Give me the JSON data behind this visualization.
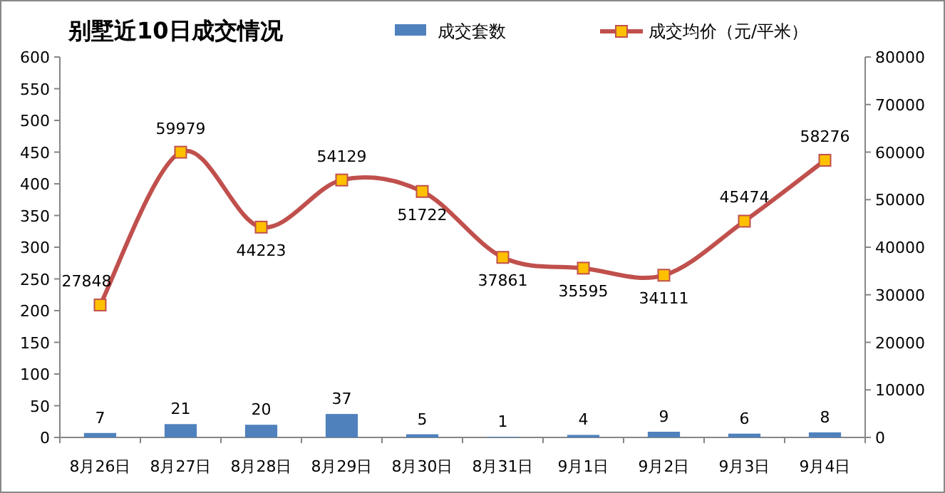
{
  "chart_data": {
    "type": "bar",
    "title": "别墅近10日成交情况",
    "categories": [
      "8月26日",
      "8月27日",
      "8月28日",
      "8月29日",
      "8月30日",
      "8月31日",
      "9月1日",
      "9月2日",
      "9月3日",
      "9月4日"
    ],
    "series": [
      {
        "name": "成交套数",
        "color": "#4f81bd",
        "values": [
          7,
          21,
          20,
          37,
          5,
          1,
          4,
          9,
          6,
          8
        ]
      },
      {
        "name": "成交均价（元/平米）",
        "type": "line",
        "axis": "y2",
        "color": "#c0504d",
        "values": [
          27848,
          59979,
          44223,
          54129,
          51722,
          37861,
          35595,
          34111,
          45474,
          58276
        ]
      }
    ],
    "ylim": [
      0,
      600
    ],
    "yticks": [
      0,
      50,
      100,
      150,
      200,
      250,
      300,
      350,
      400,
      450,
      500,
      550,
      600
    ],
    "y2lim": [
      0,
      80000
    ],
    "y2ticks": [
      0,
      10000,
      20000,
      30000,
      40000,
      50000,
      60000,
      70000,
      80000
    ],
    "data_labels": true,
    "legend": "top",
    "marker": "square",
    "grid": false
  }
}
